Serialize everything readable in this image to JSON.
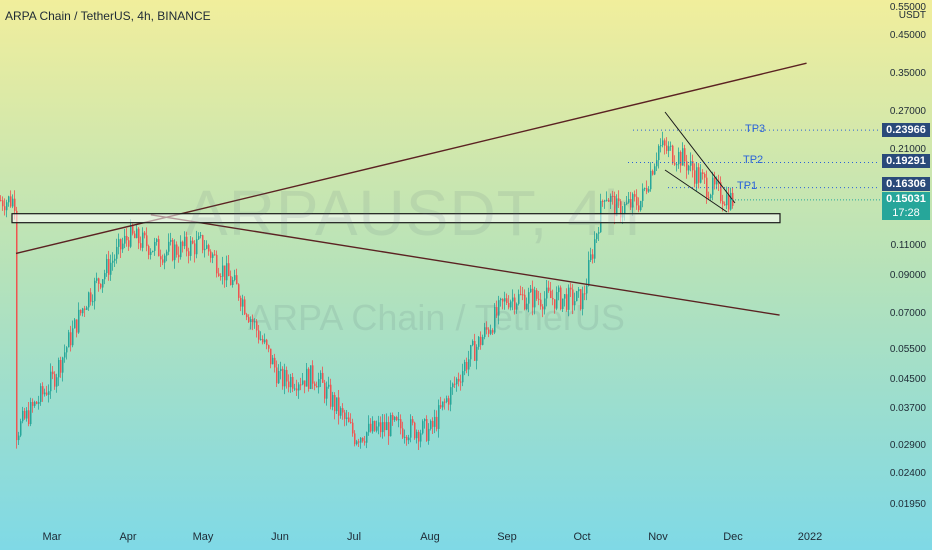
{
  "header": {
    "title": "ARPA Chain / TetherUS, 4h, BINANCE"
  },
  "watermark": {
    "symbol": "ARPAUSDT, 4h",
    "name": "ARPA Chain / TetherUS"
  },
  "axis": {
    "currency": "USDT",
    "y_ticks": [
      "0.55000",
      "0.45000",
      "0.35000",
      "0.27000",
      "0.21000",
      "0.11000",
      "0.09000",
      "0.07000",
      "0.05500",
      "0.04500",
      "0.03700",
      "0.02900",
      "0.02400",
      "0.01950"
    ],
    "x_ticks": [
      "Mar",
      "Apr",
      "May",
      "Jun",
      "Jul",
      "Aug",
      "Sep",
      "Oct",
      "Nov",
      "Dec",
      "2022"
    ]
  },
  "price_tags": {
    "tp3_price": "0.23966",
    "tp2_price": "0.19291",
    "tp1_price": "0.16306",
    "last_price": "0.15031",
    "countdown": "17:28"
  },
  "annotations": {
    "tp3": "TP3",
    "tp2": "TP2",
    "tp1": "TP1"
  },
  "colors": {
    "up": "#26a69a",
    "down": "#ef5350",
    "line": "#5b2222",
    "target": "#2a62d8",
    "last_price": "#26a69a"
  },
  "chart_data": {
    "type": "candlestick",
    "title": "ARPA Chain / TetherUS, 4h, BINANCE",
    "scale": "log",
    "ylim": [
      0.0175,
      0.55
    ],
    "series": [
      {
        "name": "ARPAUSDT",
        "x": [
          "Feb 15",
          "Mar 1",
          "Mar 15",
          "Apr 1",
          "Apr 15",
          "May 1",
          "May 15",
          "Jun 1",
          "Jun 15",
          "Jul 1",
          "Jul 15",
          "Aug 1",
          "Aug 15",
          "Sep 1",
          "Sep 15",
          "Oct 1",
          "Oct 10",
          "Oct 15",
          "Oct 25",
          "Nov 1",
          "Nov 10",
          "Nov 20",
          "Nov 30"
        ],
        "close": [
          0.032,
          0.045,
          0.078,
          0.118,
          0.106,
          0.112,
          0.082,
          0.045,
          0.046,
          0.031,
          0.033,
          0.032,
          0.05,
          0.078,
          0.078,
          0.077,
          0.16,
          0.14,
          0.15,
          0.215,
          0.2,
          0.165,
          0.15
        ]
      }
    ],
    "levels": {
      "resistance_box": [
        0.129,
        0.137
      ],
      "tp1": 0.16306,
      "tp2": 0.19291,
      "tp3": 0.23966
    },
    "trendlines": [
      {
        "name": "rising resistance",
        "from": [
          "Feb 15",
          0.105
        ],
        "to": [
          "Dec 31",
          0.375
        ]
      },
      {
        "name": "falling support",
        "from": [
          "Apr 10",
          0.136
        ],
        "to": [
          "Dec 20",
          0.0695
        ]
      }
    ]
  }
}
